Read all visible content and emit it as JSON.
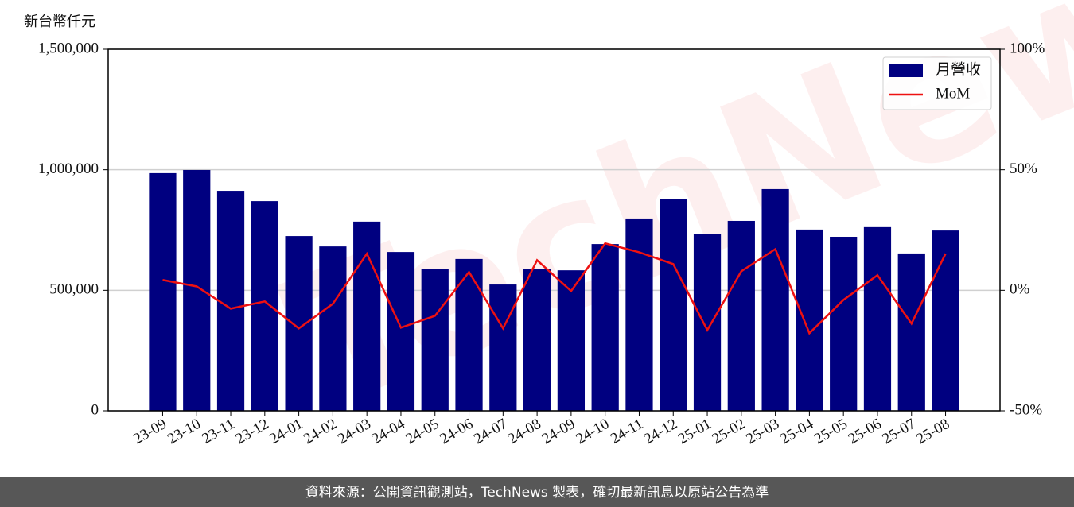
{
  "chart_data": {
    "type": "bar",
    "y_label": "新台幣仟元",
    "watermark": "TechNews",
    "footer": "資料來源：公開資訊觀測站，TechNews 製表，確切最新訊息以原站公告為準",
    "categories": [
      "23-09",
      "23-10",
      "23-11",
      "23-12",
      "24-01",
      "24-02",
      "24-03",
      "24-04",
      "24-05",
      "24-06",
      "24-07",
      "24-08",
      "24-09",
      "24-10",
      "24-11",
      "24-12",
      "25-01",
      "25-02",
      "25-03",
      "25-04",
      "25-05",
      "25-06",
      "25-07",
      "25-08"
    ],
    "series": [
      {
        "name": "月營收",
        "type": "bar",
        "color": "#000080",
        "values": [
          986000,
          999000,
          913000,
          870000,
          725000,
          682000,
          785000,
          659000,
          587000,
          630000,
          524000,
          587000,
          583000,
          692000,
          798000,
          880000,
          732000,
          788000,
          920000,
          752000,
          722000,
          762000,
          653000,
          748000
        ]
      },
      {
        "name": "MoM",
        "type": "line",
        "axis": "y2",
        "color": "#ee1111",
        "values": [
          4.3,
          1.6,
          -7.6,
          -4.6,
          -15.8,
          -5.6,
          15.2,
          -15.5,
          -10.6,
          7.6,
          -15.8,
          12.5,
          -0.3,
          19.5,
          15.8,
          10.9,
          -16.5,
          7.9,
          17.1,
          -17.8,
          -4.0,
          6.3,
          -13.8,
          15.2
        ]
      }
    ],
    "ylim": [
      0,
      1500000
    ],
    "yticks": [
      0,
      {
        "value": 500000,
        "label": "500,000"
      },
      {
        "value": 1000000,
        "label": "1,000,000"
      },
      {
        "value": 1500000,
        "label": "1,500,000"
      }
    ],
    "y2lim": [
      -50,
      100
    ],
    "y2ticks": [
      {
        "value": -50,
        "label": "-50%"
      },
      {
        "value": 0,
        "label": "0%"
      },
      {
        "value": 50,
        "label": "50%"
      },
      {
        "value": 100,
        "label": "100%"
      }
    ],
    "grid": true,
    "legend": "upper right"
  }
}
